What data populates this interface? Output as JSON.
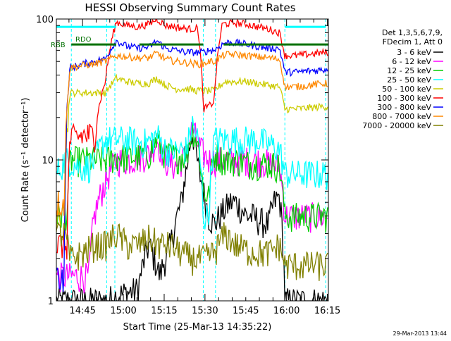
{
  "chart_data": {
    "type": "line",
    "title": "HESSI Observing Summary Count Rates",
    "xlabel": "Start Time (25-Mar-13 14:35:22)",
    "ylabel": "Count Rate (s⁻¹ detector⁻¹)",
    "yscale": "log",
    "ylim": [
      1,
      100
    ],
    "xlim_minutes": [
      0,
      100
    ],
    "ytick_labels": [
      {
        "value": 1,
        "label": "1"
      },
      {
        "value": 10,
        "label": "10"
      },
      {
        "value": 100,
        "label": "100"
      }
    ],
    "xtick_labels": [
      {
        "minutes": 9.63,
        "label": "14:45"
      },
      {
        "minutes": 24.63,
        "label": "15:00"
      },
      {
        "minutes": 39.63,
        "label": "15:15"
      },
      {
        "minutes": 54.63,
        "label": "15:30"
      },
      {
        "minutes": 69.63,
        "label": "15:45"
      },
      {
        "minutes": 84.63,
        "label": "16:00"
      },
      {
        "minutes": 99.63,
        "label": "16:15"
      }
    ],
    "legend_header": [
      "Det 1,3,5,6,7,9,",
      "FDecim 1, Att 0"
    ],
    "legend_placement": "right",
    "footer_date": "29-Mar-2013 13:44",
    "flags": [
      {
        "label": "RDO",
        "y": 66,
        "segments": [
          [
            5.5,
            22
          ],
          [
            30.5,
            54
          ],
          [
            61.5,
            100
          ]
        ],
        "color": "#007000"
      },
      {
        "label": "RBB",
        "y": 66,
        "segments": [],
        "color": "#007000"
      },
      {
        "label": "",
        "y": 88,
        "segments": [
          [
            0,
            22
          ],
          [
            84,
            99
          ]
        ],
        "color": "#00ffff"
      }
    ],
    "vlines_minutes": [
      5.5,
      18.5,
      21.5,
      54,
      58.5,
      84,
      99
    ],
    "series": [
      {
        "name": "3 - 6 keV",
        "color": "#000000",
        "points": [
          [
            0,
            1
          ],
          [
            13,
            1
          ],
          [
            18,
            1
          ],
          [
            23,
            1.1
          ],
          [
            30,
            1.2
          ],
          [
            34,
            2.5
          ],
          [
            38,
            1.5
          ],
          [
            42,
            2.5
          ],
          [
            46,
            5
          ],
          [
            48,
            9
          ],
          [
            50,
            16
          ],
          [
            52,
            9
          ],
          [
            54,
            6
          ],
          [
            56,
            4
          ],
          [
            58,
            3.5
          ],
          [
            60,
            4
          ],
          [
            62,
            4.5
          ],
          [
            64,
            5
          ],
          [
            66,
            5
          ],
          [
            68,
            4.5
          ],
          [
            70,
            4
          ],
          [
            72,
            4
          ],
          [
            75,
            3.7
          ],
          [
            78,
            3.5
          ],
          [
            80,
            5
          ],
          [
            82,
            5.5
          ],
          [
            84,
            1
          ],
          [
            88,
            1
          ],
          [
            100,
            1
          ]
        ]
      },
      {
        "name": "6 - 12 keV",
        "color": "#ff00ff",
        "points": [
          [
            0,
            1.5
          ],
          [
            5,
            1.5
          ],
          [
            7,
            1.5
          ],
          [
            12,
            1.5
          ],
          [
            14,
            4
          ],
          [
            18,
            7
          ],
          [
            22,
            10
          ],
          [
            26,
            10
          ],
          [
            30,
            10.5
          ],
          [
            34,
            11
          ],
          [
            37,
            14
          ],
          [
            40,
            10
          ],
          [
            44,
            9
          ],
          [
            48,
            11
          ],
          [
            50,
            17
          ],
          [
            52,
            13
          ],
          [
            54,
            11
          ],
          [
            56,
            10
          ],
          [
            58,
            10
          ],
          [
            62,
            10
          ],
          [
            66,
            10
          ],
          [
            70,
            10
          ],
          [
            74,
            10
          ],
          [
            78,
            9.5
          ],
          [
            82,
            9
          ],
          [
            84,
            4
          ],
          [
            88,
            4
          ],
          [
            99,
            4
          ]
        ]
      },
      {
        "name": "12 - 25 keV",
        "color": "#00cc00",
        "points": [
          [
            0,
            4
          ],
          [
            4,
            4.2
          ],
          [
            5,
            10
          ],
          [
            10,
            10
          ],
          [
            14,
            10
          ],
          [
            18,
            10
          ],
          [
            22,
            10.5
          ],
          [
            26,
            10.5
          ],
          [
            30,
            10.5
          ],
          [
            34,
            11
          ],
          [
            37,
            14
          ],
          [
            40,
            11
          ],
          [
            44,
            10.5
          ],
          [
            48,
            11
          ],
          [
            50,
            17
          ],
          [
            52,
            13
          ],
          [
            54,
            6
          ],
          [
            56,
            5.5
          ],
          [
            58,
            11
          ],
          [
            62,
            10
          ],
          [
            66,
            10
          ],
          [
            70,
            9.5
          ],
          [
            74,
            9.5
          ],
          [
            78,
            9.5
          ],
          [
            82,
            9
          ],
          [
            84,
            4
          ],
          [
            88,
            4
          ],
          [
            99,
            4
          ]
        ]
      },
      {
        "name": "25 - 50 keV",
        "color": "#00ffff",
        "points": [
          [
            0,
            8
          ],
          [
            3,
            10
          ],
          [
            5,
            10
          ],
          [
            8,
            9
          ],
          [
            12,
            9
          ],
          [
            14,
            10
          ],
          [
            18,
            14
          ],
          [
            22,
            14
          ],
          [
            26,
            14
          ],
          [
            30,
            13.5
          ],
          [
            34,
            13.5
          ],
          [
            37,
            15
          ],
          [
            40,
            12
          ],
          [
            44,
            11.5
          ],
          [
            48,
            12
          ],
          [
            50,
            18
          ],
          [
            52,
            14
          ],
          [
            54,
            4
          ],
          [
            56,
            4
          ],
          [
            58,
            14
          ],
          [
            62,
            14
          ],
          [
            66,
            14
          ],
          [
            70,
            14
          ],
          [
            74,
            14
          ],
          [
            78,
            13
          ],
          [
            82,
            12
          ],
          [
            84,
            8
          ],
          [
            88,
            8
          ],
          [
            99,
            8
          ]
        ]
      },
      {
        "name": "50 - 100 keV",
        "color": "#cccc00",
        "points": [
          [
            0,
            3.5
          ],
          [
            3,
            3.5
          ],
          [
            5,
            30
          ],
          [
            10,
            30
          ],
          [
            14,
            30
          ],
          [
            18,
            30
          ],
          [
            22,
            38
          ],
          [
            26,
            36
          ],
          [
            30,
            35
          ],
          [
            34,
            35
          ],
          [
            37,
            38
          ],
          [
            40,
            34
          ],
          [
            44,
            32
          ],
          [
            48,
            32
          ],
          [
            52,
            31
          ],
          [
            54,
            31
          ],
          [
            56,
            31
          ],
          [
            58,
            31
          ],
          [
            62,
            36
          ],
          [
            66,
            36
          ],
          [
            70,
            36
          ],
          [
            74,
            35
          ],
          [
            78,
            34
          ],
          [
            82,
            33
          ],
          [
            84,
            23
          ],
          [
            88,
            23
          ],
          [
            99,
            24
          ]
        ]
      },
      {
        "name": "100 - 300 keV",
        "color": "#ff0000",
        "points": [
          [
            0,
            2.5
          ],
          [
            4,
            2.5
          ],
          [
            5,
            14
          ],
          [
            10,
            15
          ],
          [
            14,
            15
          ],
          [
            18,
            36
          ],
          [
            22,
            95
          ],
          [
            26,
            90
          ],
          [
            30,
            88
          ],
          [
            34,
            92
          ],
          [
            37,
            100
          ],
          [
            40,
            90
          ],
          [
            44,
            88
          ],
          [
            48,
            85
          ],
          [
            52,
            86
          ],
          [
            54,
            23
          ],
          [
            56,
            24
          ],
          [
            58,
            26
          ],
          [
            61,
            92
          ],
          [
            66,
            94
          ],
          [
            70,
            92
          ],
          [
            74,
            88
          ],
          [
            78,
            85
          ],
          [
            82,
            80
          ],
          [
            84,
            55
          ],
          [
            88,
            55
          ],
          [
            99,
            58
          ]
        ]
      },
      {
        "name": "300 - 800 keV",
        "color": "#0000ff",
        "points": [
          [
            0,
            1.5
          ],
          [
            3,
            1.5
          ],
          [
            5,
            45
          ],
          [
            10,
            48
          ],
          [
            14,
            50
          ],
          [
            18,
            52
          ],
          [
            22,
            70
          ],
          [
            26,
            64
          ],
          [
            30,
            62
          ],
          [
            34,
            63
          ],
          [
            37,
            70
          ],
          [
            40,
            62
          ],
          [
            44,
            60
          ],
          [
            48,
            58
          ],
          [
            52,
            58
          ],
          [
            54,
            58
          ],
          [
            56,
            60
          ],
          [
            58,
            60
          ],
          [
            62,
            68
          ],
          [
            66,
            68
          ],
          [
            70,
            66
          ],
          [
            74,
            64
          ],
          [
            78,
            62
          ],
          [
            82,
            62
          ],
          [
            84,
            42
          ],
          [
            88,
            42
          ],
          [
            99,
            44
          ]
        ]
      },
      {
        "name": "800 - 7000 keV",
        "color": "#ff8800",
        "points": [
          [
            0,
            5
          ],
          [
            3,
            5
          ],
          [
            5,
            45
          ],
          [
            10,
            47
          ],
          [
            14,
            48
          ],
          [
            18,
            50
          ],
          [
            22,
            55
          ],
          [
            26,
            54
          ],
          [
            30,
            53
          ],
          [
            34,
            53
          ],
          [
            37,
            57
          ],
          [
            40,
            52
          ],
          [
            44,
            50
          ],
          [
            48,
            49
          ],
          [
            52,
            48
          ],
          [
            54,
            48
          ],
          [
            56,
            50
          ],
          [
            58,
            50
          ],
          [
            62,
            56
          ],
          [
            66,
            56
          ],
          [
            70,
            55
          ],
          [
            74,
            54
          ],
          [
            78,
            53
          ],
          [
            82,
            52
          ],
          [
            84,
            33
          ],
          [
            88,
            33
          ],
          [
            99,
            35
          ]
        ]
      },
      {
        "name": "7000 - 20000 keV",
        "color": "#808000",
        "points": [
          [
            0,
            3
          ],
          [
            3,
            3
          ],
          [
            5,
            2
          ],
          [
            10,
            2.2
          ],
          [
            14,
            2.5
          ],
          [
            18,
            2.5
          ],
          [
            22,
            3
          ],
          [
            26,
            2.5
          ],
          [
            30,
            2.5
          ],
          [
            34,
            2.8
          ],
          [
            38,
            2.5
          ],
          [
            42,
            2.5
          ],
          [
            46,
            2.2
          ],
          [
            50,
            2
          ],
          [
            54,
            2
          ],
          [
            58,
            2.2
          ],
          [
            62,
            3
          ],
          [
            66,
            2.5
          ],
          [
            70,
            2.3
          ],
          [
            74,
            2.2
          ],
          [
            78,
            2.2
          ],
          [
            82,
            2.5
          ],
          [
            84,
            1.8
          ],
          [
            88,
            1.8
          ],
          [
            99,
            1.8
          ]
        ]
      }
    ]
  }
}
